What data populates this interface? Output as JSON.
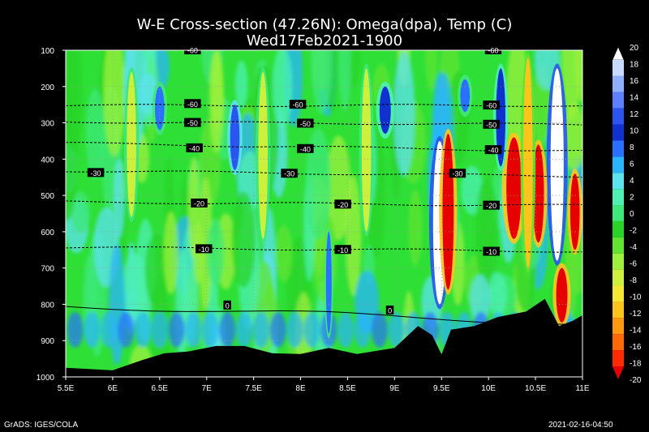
{
  "title": {
    "line1": "W-E Cross-section (47.26N): Omega(dpa), Temp (C)",
    "line2": "Wed17Feb2021-1900"
  },
  "footer": {
    "left": "GrADS: IGES/COLA",
    "right": "2021-02-16-04:50"
  },
  "chart_data": {
    "type": "heatmap",
    "title": "W-E Cross-section (47.26N): Omega(dpa), Temp (C)",
    "subtitle": "Wed17Feb2021-1900",
    "x_ticks": [
      "5.5E",
      "6E",
      "6.5E",
      "7E",
      "7.5E",
      "8E",
      "8.5E",
      "9E",
      "9.5E",
      "10E",
      "10.5E",
      "11E"
    ],
    "x_range": [
      5.5,
      11
    ],
    "y_ticks": [
      "100",
      "200",
      "300",
      "400",
      "500",
      "600",
      "700",
      "800",
      "900",
      "1000"
    ],
    "y_range_hpa": [
      1000,
      100
    ],
    "grid": true,
    "colorbar": {
      "labels": [
        "20",
        "18",
        "16",
        "14",
        "12",
        "10",
        "8",
        "6",
        "4",
        "2",
        "0",
        "-2",
        "-4",
        "-6",
        "-8",
        "-10",
        "-12",
        "-14",
        "-16",
        "-18",
        "-20"
      ],
      "colors": [
        "#ffffff",
        "#c6dbff",
        "#8fb0ff",
        "#5c80ff",
        "#2a55ee",
        "#1030d0",
        "#2a70ff",
        "#28b4ff",
        "#5ce2f0",
        "#4ef0b4",
        "#3ee87a",
        "#28d428",
        "#60e430",
        "#9ef03c",
        "#ccf03c",
        "#f4e632",
        "#ffc41c",
        "#ff9a10",
        "#ff6a08",
        "#ff2a00",
        "#e60000"
      ]
    },
    "temperature_contours": [
      {
        "value": -60,
        "label": "-60",
        "p_left": 252,
        "p_right": 252
      },
      {
        "value": -50,
        "label": "-50",
        "p_left": 297,
        "p_right": 305
      },
      {
        "value": -40,
        "label": "-40",
        "p_left": 356,
        "p_right": 378
      },
      {
        "value": -30,
        "label": "-30",
        "p_left": 432,
        "p_right": 447
      },
      {
        "value": -20,
        "label": "-20",
        "p_left": 518,
        "p_right": 528
      },
      {
        "value": -10,
        "label": "-10",
        "p_left": 643,
        "p_right": 654
      },
      {
        "value": 0,
        "label": "0",
        "p_left": 806,
        "p_right": 845
      }
    ],
    "contour_labels_shown": [
      {
        "value": "-60",
        "lon": 6.85,
        "p": 100
      },
      {
        "value": "-60",
        "lon": 10.05,
        "p": 100
      },
      {
        "value": "-60",
        "lon": 6.85,
        "p": 248
      },
      {
        "value": "-60",
        "lon": 7.97,
        "p": 250
      },
      {
        "value": "-60",
        "lon": 10.03,
        "p": 252
      },
      {
        "value": "-50",
        "lon": 6.85,
        "p": 300
      },
      {
        "value": "-50",
        "lon": 8.05,
        "p": 302
      },
      {
        "value": "-50",
        "lon": 10.03,
        "p": 305
      },
      {
        "value": "-40",
        "lon": 6.87,
        "p": 370
      },
      {
        "value": "-40",
        "lon": 8.05,
        "p": 372
      },
      {
        "value": "-40",
        "lon": 10.05,
        "p": 375
      },
      {
        "value": "-30",
        "lon": 5.82,
        "p": 438
      },
      {
        "value": "-30",
        "lon": 7.88,
        "p": 440
      },
      {
        "value": "-30",
        "lon": 9.67,
        "p": 440
      },
      {
        "value": "-20",
        "lon": 6.92,
        "p": 522
      },
      {
        "value": "-20",
        "lon": 8.45,
        "p": 525
      },
      {
        "value": "-20",
        "lon": 10.03,
        "p": 528
      },
      {
        "value": "-10",
        "lon": 6.97,
        "p": 648
      },
      {
        "value": "-10",
        "lon": 8.45,
        "p": 650
      },
      {
        "value": "-10",
        "lon": 10.03,
        "p": 655
      },
      {
        "value": "0",
        "lon": 7.22,
        "p": 803
      },
      {
        "value": "0",
        "lon": 8.95,
        "p": 817
      }
    ],
    "terrain_pressure_hpa": [
      [
        5.5,
        975
      ],
      [
        6.0,
        982
      ],
      [
        6.3,
        955
      ],
      [
        6.55,
        935
      ],
      [
        6.8,
        930
      ],
      [
        7.1,
        915
      ],
      [
        7.4,
        915
      ],
      [
        7.7,
        935
      ],
      [
        8.0,
        937
      ],
      [
        8.3,
        920
      ],
      [
        8.6,
        937
      ],
      [
        9.0,
        920
      ],
      [
        9.25,
        860
      ],
      [
        9.4,
        885
      ],
      [
        9.5,
        938
      ],
      [
        9.6,
        870
      ],
      [
        9.85,
        860
      ],
      [
        10.1,
        835
      ],
      [
        10.4,
        820
      ],
      [
        10.6,
        785
      ],
      [
        10.75,
        860
      ],
      [
        10.9,
        845
      ],
      [
        11.0,
        830
      ]
    ],
    "omega_features": [
      {
        "lon": 9.48,
        "p_top": 350,
        "p_bot": 800,
        "value": 20,
        "width_deg": 0.07
      },
      {
        "lon": 10.73,
        "p_top": 150,
        "p_bot": 680,
        "value": 20,
        "width_deg": 0.07
      },
      {
        "lon": 9.57,
        "p_top": 330,
        "p_bot": 760,
        "value": -20,
        "width_deg": 0.06
      },
      {
        "lon": 10.27,
        "p_top": 340,
        "p_bot": 620,
        "value": -20,
        "width_deg": 0.08
      },
      {
        "lon": 10.53,
        "p_top": 360,
        "p_bot": 630,
        "value": -20,
        "width_deg": 0.06
      },
      {
        "lon": 10.92,
        "p_top": 440,
        "p_bot": 650,
        "value": -20,
        "width_deg": 0.05
      },
      {
        "lon": 10.78,
        "p_top": 700,
        "p_bot": 850,
        "value": -20,
        "width_deg": 0.06
      },
      {
        "lon": 7.3,
        "p_top": 250,
        "p_bot": 430,
        "value": 12,
        "width_deg": 0.05
      },
      {
        "lon": 6.5,
        "p_top": 200,
        "p_bot": 320,
        "value": 8,
        "width_deg": 0.05
      },
      {
        "lon": 8.9,
        "p_top": 200,
        "p_bot": 330,
        "value": 10,
        "width_deg": 0.06
      },
      {
        "lon": 9.75,
        "p_top": 180,
        "p_bot": 270,
        "value": 8,
        "width_deg": 0.05
      },
      {
        "lon": 10.13,
        "p_top": 150,
        "p_bot": 420,
        "value": 10,
        "width_deg": 0.05
      },
      {
        "lon": 8.3,
        "p_top": 600,
        "p_bot": 880,
        "value": 8,
        "width_deg": 0.03
      },
      {
        "lon": 6.2,
        "p_top": 160,
        "p_bot": 560,
        "value": -8,
        "width_deg": 0.05
      },
      {
        "lon": 7.6,
        "p_top": 160,
        "p_bot": 620,
        "value": -8,
        "width_deg": 0.05
      },
      {
        "lon": 8.7,
        "p_top": 150,
        "p_bot": 600,
        "value": -8,
        "width_deg": 0.05
      },
      {
        "lon": 10.42,
        "p_top": 120,
        "p_bot": 700,
        "value": -12,
        "width_deg": 0.05
      }
    ]
  }
}
